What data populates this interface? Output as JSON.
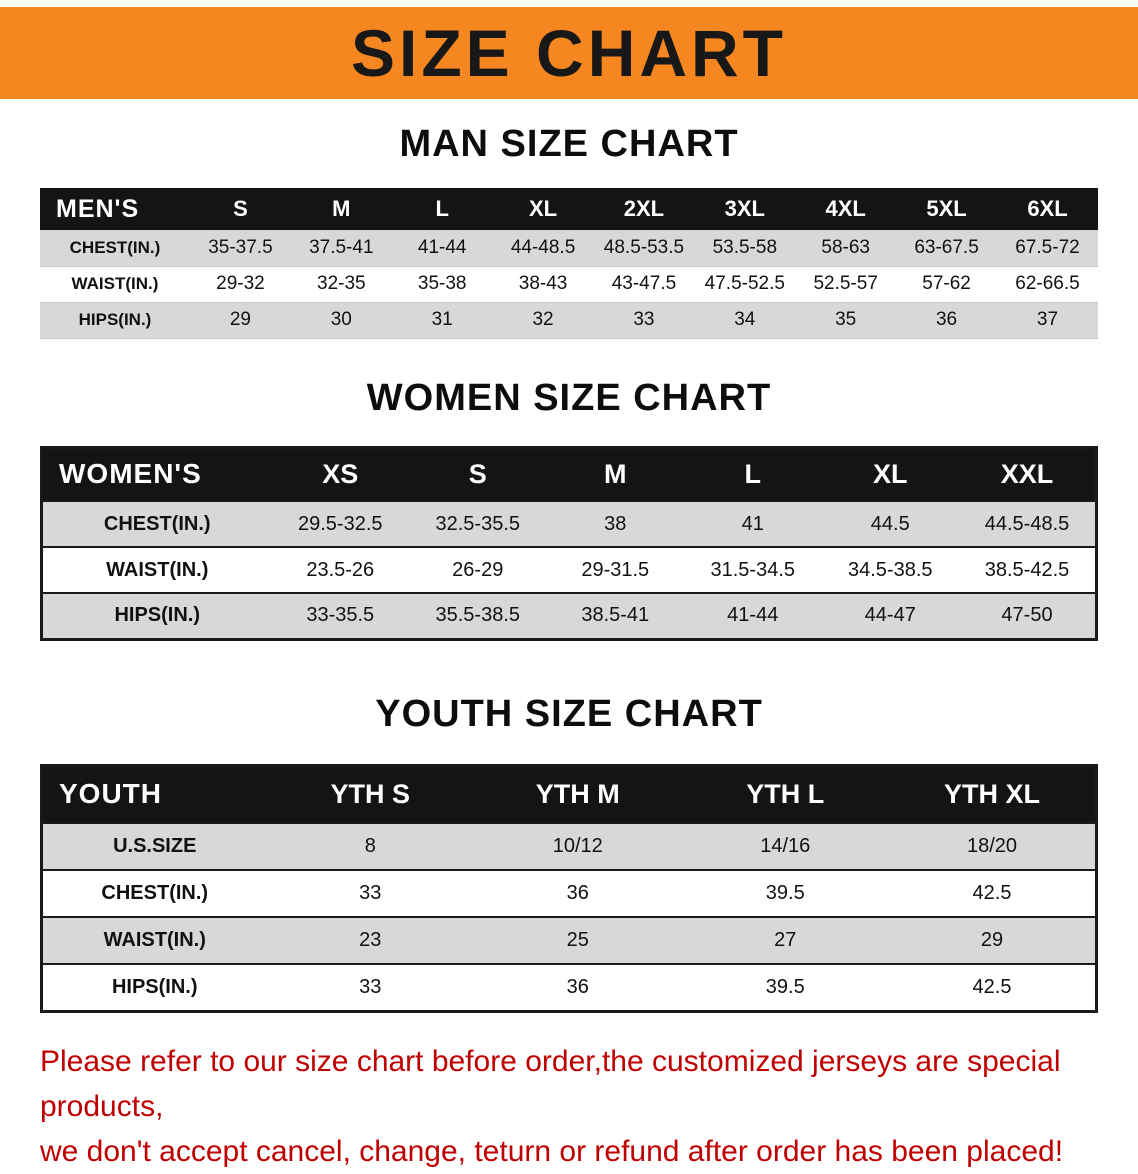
{
  "banner": {
    "title": "SIZE CHART"
  },
  "chart_data": [
    {
      "type": "table",
      "title": "MAN SIZE CHART",
      "corner_label": "MEN'S",
      "columns": [
        "S",
        "M",
        "L",
        "XL",
        "2XL",
        "3XL",
        "4XL",
        "5XL",
        "6XL"
      ],
      "rows": [
        {
          "label": "CHEST(IN.)",
          "values": [
            "35-37.5",
            "37.5-41",
            "41-44",
            "44-48.5",
            "48.5-53.5",
            "53.5-58",
            "58-63",
            "63-67.5",
            "67.5-72"
          ]
        },
        {
          "label": "WAIST(IN.)",
          "values": [
            "29-32",
            "32-35",
            "35-38",
            "38-43",
            "43-47.5",
            "47.5-52.5",
            "52.5-57",
            "57-62",
            "62-66.5"
          ]
        },
        {
          "label": "HIPS(IN.)",
          "values": [
            "29",
            "30",
            "31",
            "32",
            "33",
            "34",
            "35",
            "36",
            "37"
          ]
        }
      ]
    },
    {
      "type": "table",
      "title": "WOMEN SIZE CHART",
      "corner_label": "WOMEN'S",
      "columns": [
        "XS",
        "S",
        "M",
        "L",
        "XL",
        "XXL"
      ],
      "rows": [
        {
          "label": "CHEST(IN.)",
          "values": [
            "29.5-32.5",
            "32.5-35.5",
            "38",
            "41",
            "44.5",
            "44.5-48.5"
          ]
        },
        {
          "label": "WAIST(IN.)",
          "values": [
            "23.5-26",
            "26-29",
            "29-31.5",
            "31.5-34.5",
            "34.5-38.5",
            "38.5-42.5"
          ]
        },
        {
          "label": "HIPS(IN.)",
          "values": [
            "33-35.5",
            "35.5-38.5",
            "38.5-41",
            "41-44",
            "44-47",
            "47-50"
          ]
        }
      ]
    },
    {
      "type": "table",
      "title": "YOUTH SIZE CHART",
      "corner_label": "YOUTH",
      "columns": [
        "YTH S",
        "YTH M",
        "YTH L",
        "YTH XL"
      ],
      "rows": [
        {
          "label": "U.S.SIZE",
          "values": [
            "8",
            "10/12",
            "14/16",
            "18/20"
          ]
        },
        {
          "label": "CHEST(IN.)",
          "values": [
            "33",
            "36",
            "39.5",
            "42.5"
          ]
        },
        {
          "label": "WAIST(IN.)",
          "values": [
            "23",
            "25",
            "27",
            "29"
          ]
        },
        {
          "label": "HIPS(IN.)",
          "values": [
            "33",
            "36",
            "39.5",
            "42.5"
          ]
        }
      ]
    }
  ],
  "notice": {
    "line1": "Please refer to our size chart before order,the customized jerseys are special products,",
    "line2": "we don't accept cancel, change, teturn or refund after order has been placed!"
  },
  "colors": {
    "banner_bg": "#F6861F",
    "table_header_bg": "#141414",
    "row_alt_bg": "#d8d8d8",
    "notice_color": "#C00000"
  }
}
